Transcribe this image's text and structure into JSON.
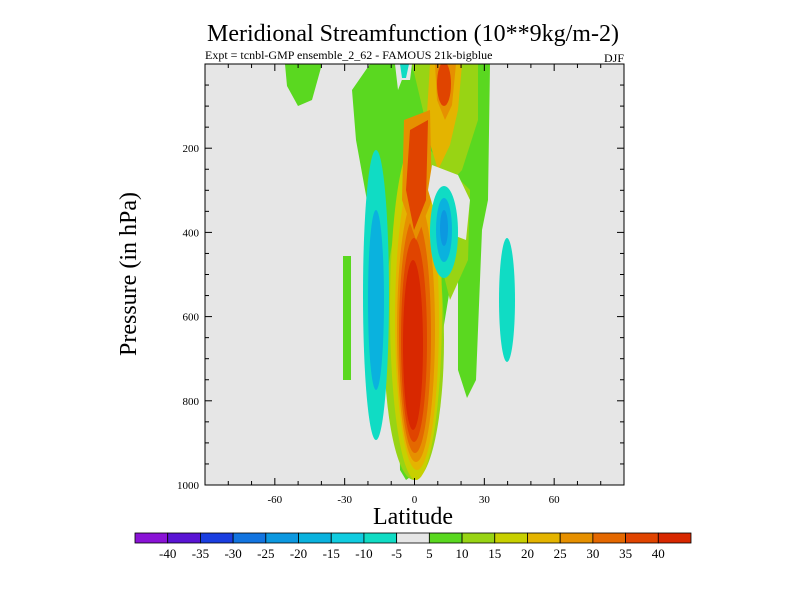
{
  "chart_data": {
    "type": "contour",
    "title": "Meridional Streamfunction (10**9kg/m-2)",
    "subtitle": "Expt = tcnbl-GMP ensemble_2_62 - FAMOUS 21k-bigblue",
    "season": "DJF",
    "xlabel": "Latitude",
    "ylabel": "Pressure (in hPa)",
    "xlim": [
      -90,
      90
    ],
    "ylim": [
      1000,
      0
    ],
    "x_ticks": [
      -60,
      -30,
      0,
      30,
      60
    ],
    "y_ticks": [
      200,
      400,
      600,
      800,
      1000
    ],
    "x_tick_labels": [
      "-60",
      "-30",
      "0",
      "30",
      "60"
    ],
    "y_tick_labels": [
      "200",
      "400",
      "600",
      "800",
      "1000"
    ],
    "background_color": "#e6e6e6",
    "colorbar": {
      "levels": [
        -40,
        -35,
        -30,
        -25,
        -20,
        -15,
        -10,
        -5,
        5,
        10,
        15,
        20,
        25,
        30,
        35,
        40
      ],
      "labels": [
        "-40",
        "-35",
        "-30",
        "-25",
        "-20",
        "-15",
        "-10",
        "-5",
        "5",
        "10",
        "15",
        "20",
        "25",
        "30",
        "35",
        "40"
      ],
      "colors": [
        "#8a13d6",
        "#5a14d4",
        "#1a3ee0",
        "#1274e0",
        "#0c98e0",
        "#0ab2de",
        "#10cce0",
        "#10dcc4",
        "#e6e6e6",
        "#5ad820",
        "#98d414",
        "#c8d000",
        "#e4b400",
        "#e69000",
        "#e46800",
        "#e04400",
        "#d82800"
      ]
    },
    "contour_features": [
      {
        "name": "tropical-positive-cell",
        "lat_range": [
          -12,
          18
        ],
        "pressure_range": [
          0,
          990
        ],
        "peak_value": 40,
        "sign": "positive"
      },
      {
        "name": "sh-negative-band",
        "lat_range": [
          -25,
          -10
        ],
        "pressure_range": [
          160,
          940
        ],
        "peak_value": -15,
        "sign": "negative"
      },
      {
        "name": "nh-upper-negative",
        "lat_range": [
          5,
          24
        ],
        "pressure_range": [
          200,
          600
        ],
        "peak_value": -20,
        "sign": "negative"
      },
      {
        "name": "nh-subtropical-negative",
        "lat_range": [
          32,
          44
        ],
        "pressure_range": [
          490,
          840
        ],
        "peak_value": -10,
        "sign": "negative"
      },
      {
        "name": "sh-subtropical-positive",
        "lat_range": [
          -30,
          -26
        ],
        "pressure_range": [
          470,
          820
        ],
        "peak_value": 5,
        "sign": "positive"
      },
      {
        "name": "sh-upper-positive",
        "lat_range": [
          -53,
          -44
        ],
        "pressure_range": [
          0,
          140
        ],
        "peak_value": 5,
        "sign": "positive"
      },
      {
        "name": "nh-broad-positive",
        "lat_range": [
          18,
          34
        ],
        "pressure_range": [
          0,
          800
        ],
        "peak_value": 10,
        "sign": "positive"
      }
    ]
  }
}
